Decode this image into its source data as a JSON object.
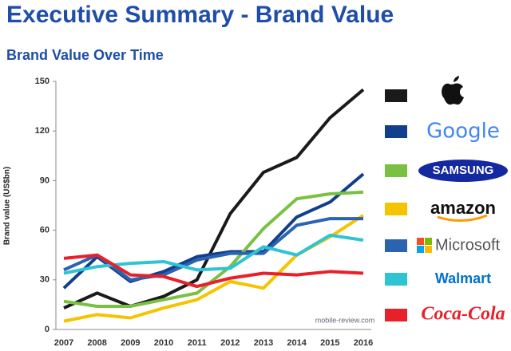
{
  "chart_data": {
    "type": "line",
    "title": "Executive Summary - Brand Value",
    "subtitle": "Brand Value Over Time",
    "ylabel": "Brand value (US$bn)",
    "annotation": "mobile-review.com",
    "categories": [
      "2007",
      "2008",
      "2009",
      "2010",
      "2011",
      "2012",
      "2013",
      "2014",
      "2015",
      "2016"
    ],
    "ylim": [
      0,
      150
    ],
    "yticks": [
      0,
      30,
      60,
      90,
      120,
      150
    ],
    "series": [
      {
        "color": "#1a1a1a",
        "values": [
          13,
          22,
          14,
          20,
          30,
          70,
          95,
          104,
          128,
          145
        ]
      },
      {
        "name": "Google",
        "color": "#123f8c",
        "values": [
          25,
          44,
          29,
          35,
          44,
          47,
          47,
          68,
          77,
          94
        ]
      },
      {
        "name": "SAMSUNG",
        "color": "#7ac143",
        "values": [
          17,
          14,
          14,
          18,
          22,
          38,
          61,
          79,
          82,
          83
        ]
      },
      {
        "name": "amazon",
        "color": "#f5c400",
        "values": [
          5,
          9,
          7,
          13,
          18,
          29,
          25,
          45,
          56,
          69
        ]
      },
      {
        "name": "Microsoft",
        "color": "#2a64b0",
        "values": [
          36,
          45,
          30,
          33,
          42,
          46,
          46,
          63,
          67,
          67
        ]
      },
      {
        "name": "Walmart",
        "color": "#2ec4d4",
        "values": [
          34,
          38,
          40,
          41,
          36,
          37,
          50,
          45,
          57,
          54
        ]
      },
      {
        "name": "Coca-Cola",
        "color": "#e8202a",
        "values": [
          43,
          45,
          33,
          32,
          26,
          31,
          34,
          33,
          35,
          34
        ]
      }
    ]
  }
}
